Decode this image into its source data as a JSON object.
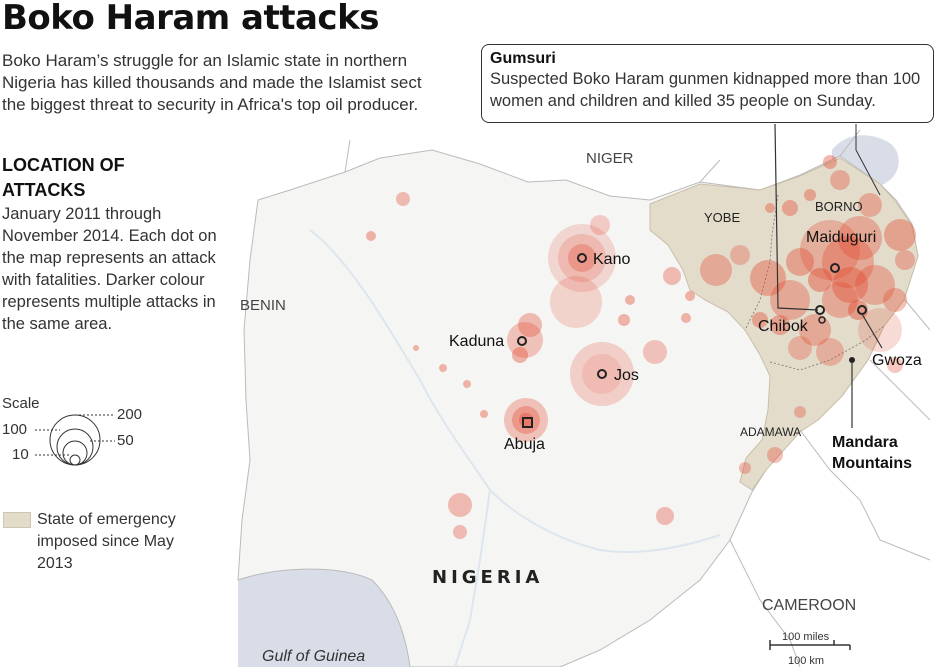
{
  "title": "Boko Haram attacks",
  "intro": "Boko Haram’s struggle for an Islamic state in northern Nigeria has killed thousands and made the Islamist sect the biggest threat to security in Africa's top oil producer.",
  "legend": {
    "heading": "LOCATION OF ATTACKS",
    "text": "January 2011 through November 2014. Each dot on the map represents an attack with fatalities. Darker colour represents multiple attacks in the same area.",
    "scale_label": "Scale",
    "scale_values": [
      "200",
      "100",
      "50",
      "10"
    ],
    "emergency": "State of emergency imposed since May 2013"
  },
  "callout": {
    "title": "Gumsuri",
    "text": "Suspected Boko Haram gunmen kidnapped more than 100 women and children and killed 35 people on Sunday."
  },
  "map": {
    "countries": [
      "NIGER",
      "BENIN",
      "CAMEROON"
    ],
    "country_main": "NIGERIA",
    "water": "Gulf of Guinea",
    "states": [
      "YOBE",
      "BORNO",
      "ADAMAWA"
    ],
    "cities": [
      "Kano",
      "Kaduna",
      "Jos",
      "Abuja",
      "Maiduguri",
      "Chibok",
      "Gwoza"
    ],
    "mountains": "Mandara Mountains",
    "scalebar": {
      "miles": "100 miles",
      "km": "100 km"
    }
  },
  "colors": {
    "dot": "#e34a33",
    "emergency": "#e3dccb",
    "land": "#f5f5f3",
    "water": "#d8dde8"
  }
}
